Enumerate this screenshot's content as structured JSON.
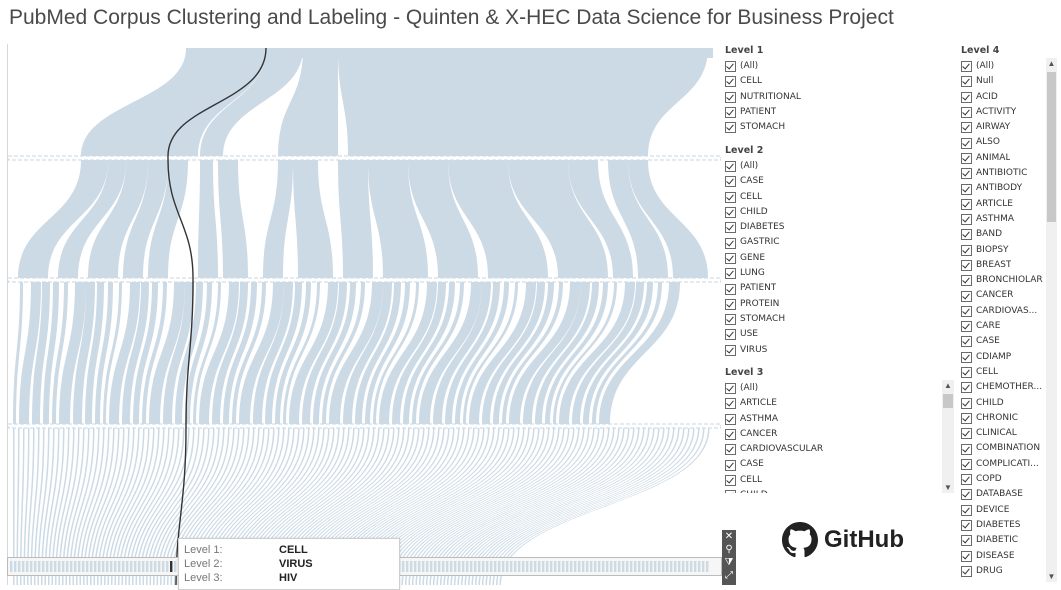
{
  "title": "PubMed Corpus Clustering and Labeling - Quinten & X-HEC Data Science for Business Project",
  "tooltip": {
    "rows": [
      {
        "key": "Level 1:",
        "value": "CELL"
      },
      {
        "key": "Level 2:",
        "value": "VIRUS"
      },
      {
        "key": "Level 3:",
        "value": "HIV"
      }
    ]
  },
  "colors": {
    "flow": "#ccdae6",
    "highlight": "#333333",
    "separator": "#c7d4e0"
  },
  "filters": {
    "level1": {
      "title": "Level 1",
      "items": [
        "(All)",
        "CELL",
        "NUTRITIONAL",
        "PATIENT",
        "STOMACH"
      ]
    },
    "level2": {
      "title": "Level 2",
      "items": [
        "(All)",
        "CASE",
        "CELL",
        "CHILD",
        "DIABETES",
        "GASTRIC",
        "GENE",
        "LUNG",
        "PATIENT",
        "PROTEIN",
        "STOMACH",
        "USE",
        "VIRUS"
      ]
    },
    "level3": {
      "title": "Level 3",
      "items": [
        "(All)",
        "ARTICLE",
        "ASTHMA",
        "CANCER",
        "CARDIOVASCULAR",
        "CASE",
        "CELL",
        "CHILD"
      ]
    },
    "level4": {
      "title": "Level 4",
      "items": [
        "(All)",
        "Null",
        "ACID",
        "ACTIVITY",
        "AIRWAY",
        "ALSO",
        "ANIMAL",
        "ANTIBIOTIC",
        "ANTIBODY",
        "ARTICLE",
        "ASTHMA",
        "BAND",
        "BIOPSY",
        "BREAST",
        "BRONCHIOLAR",
        "CANCER",
        "CARDIOVAS...",
        "CARE",
        "CASE",
        "CDIAMP",
        "CELL",
        "CHEMOTHER...",
        "CHILD",
        "CHRONIC",
        "CLINICAL",
        "COMBINATION",
        "COMPLICATI...",
        "COPD",
        "DATABASE",
        "DEVICE",
        "DIABETES",
        "DIABETIC",
        "DISEASE",
        "DRUG"
      ]
    }
  },
  "github": {
    "label": "GitHub",
    "icon": "github-icon"
  },
  "toolbar_icons": [
    "close-icon",
    "pin-icon",
    "filter-icon",
    "expand-icon"
  ]
}
